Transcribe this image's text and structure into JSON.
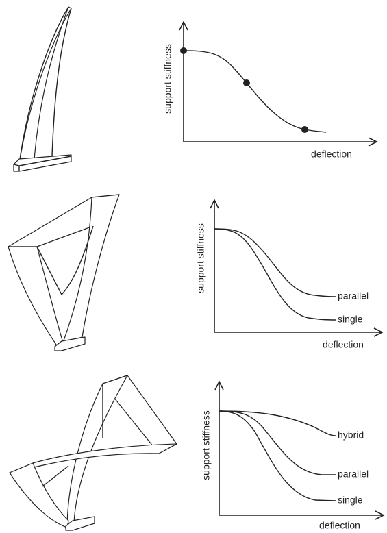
{
  "panels": [
    {
      "y_label": "support stiffness",
      "x_label": "deflection"
    },
    {
      "y_label": "support stiffness",
      "x_label": "deflection",
      "curve_labels": [
        "parallel",
        "single"
      ]
    },
    {
      "y_label": "support stiffness",
      "x_label": "deflection",
      "curve_labels": [
        "hybrid",
        "parallel",
        "single"
      ]
    }
  ]
}
